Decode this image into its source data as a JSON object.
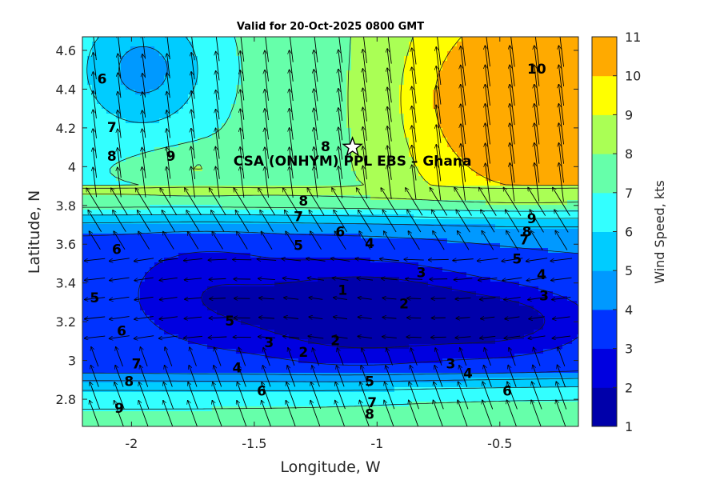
{
  "chart_data": {
    "type": "heatmap",
    "subtype": "filled-contour with wind vectors",
    "title": "Valid for 20-Oct-2025 0800 GMT",
    "xlabel": "Longitude, W",
    "ylabel": "Latitude, N",
    "xlim": [
      -2.2,
      -0.18
    ],
    "ylim": [
      2.66,
      4.67
    ],
    "xticks": [
      -2,
      -1.5,
      -1,
      -0.5
    ],
    "xtick_labels": [
      "-2",
      "-1.5",
      "-1",
      "-0.5"
    ],
    "yticks": [
      2.8,
      3,
      3.2,
      3.4,
      3.6,
      3.8,
      4,
      4.2,
      4.4,
      4.6
    ],
    "ytick_labels": [
      "2.8",
      "3",
      "3.2",
      "3.4",
      "3.6",
      "3.8",
      "4",
      "4.2",
      "4.4",
      "4.6"
    ],
    "colorbar": {
      "label": "Wind Speed, kts",
      "levels": [
        1,
        2,
        3,
        4,
        5,
        6,
        7,
        8,
        9,
        10,
        11
      ],
      "tick_labels": [
        "1",
        "2",
        "3",
        "4",
        "5",
        "6",
        "7",
        "8",
        "9",
        "10",
        "11"
      ],
      "colors": [
        "#0000aa",
        "#0000e0",
        "#0033ff",
        "#0099ff",
        "#00ccff",
        "#33ffff",
        "#66ffaa",
        "#aaff55",
        "#ffff00",
        "#ffaa00",
        "#ff5500"
      ]
    },
    "site": {
      "label": "CSA (ONHYM) PPL EBS  – Ghana",
      "lon": -1.1,
      "lat": 4.1
    },
    "contour_labels": [
      {
        "text": "6",
        "lon": -2.12,
        "lat": 4.45
      },
      {
        "text": "7",
        "lon": -2.08,
        "lat": 4.2
      },
      {
        "text": "8",
        "lon": -2.08,
        "lat": 4.05
      },
      {
        "text": "9",
        "lon": -1.84,
        "lat": 4.05
      },
      {
        "text": "8",
        "lon": -1.21,
        "lat": 4.1
      },
      {
        "text": "10",
        "lon": -0.35,
        "lat": 4.5
      },
      {
        "text": "8",
        "lon": -1.3,
        "lat": 3.82
      },
      {
        "text": "7",
        "lon": -1.32,
        "lat": 3.74
      },
      {
        "text": "6",
        "lon": -1.15,
        "lat": 3.66
      },
      {
        "text": "5",
        "lon": -1.32,
        "lat": 3.59
      },
      {
        "text": "4",
        "lon": -1.03,
        "lat": 3.6
      },
      {
        "text": "6",
        "lon": -2.06,
        "lat": 3.57
      },
      {
        "text": "9",
        "lon": -0.37,
        "lat": 3.73
      },
      {
        "text": "8",
        "lon": -0.39,
        "lat": 3.66
      },
      {
        "text": "7",
        "lon": -0.4,
        "lat": 3.62
      },
      {
        "text": "5",
        "lon": -0.43,
        "lat": 3.52
      },
      {
        "text": "4",
        "lon": -0.33,
        "lat": 3.44
      },
      {
        "text": "3",
        "lon": -0.32,
        "lat": 3.33
      },
      {
        "text": "3",
        "lon": -0.82,
        "lat": 3.45
      },
      {
        "text": "1",
        "lon": -1.14,
        "lat": 3.36
      },
      {
        "text": "2",
        "lon": -0.89,
        "lat": 3.29
      },
      {
        "text": "5",
        "lon": -2.15,
        "lat": 3.32
      },
      {
        "text": "5",
        "lon": -1.6,
        "lat": 3.2
      },
      {
        "text": "6",
        "lon": -2.04,
        "lat": 3.15
      },
      {
        "text": "3",
        "lon": -1.44,
        "lat": 3.09
      },
      {
        "text": "2",
        "lon": -1.17,
        "lat": 3.1
      },
      {
        "text": "2",
        "lon": -1.3,
        "lat": 3.04
      },
      {
        "text": "7",
        "lon": -1.98,
        "lat": 2.98
      },
      {
        "text": "4",
        "lon": -1.57,
        "lat": 2.96
      },
      {
        "text": "3",
        "lon": -0.7,
        "lat": 2.98
      },
      {
        "text": "4",
        "lon": -0.63,
        "lat": 2.93
      },
      {
        "text": "5",
        "lon": -1.03,
        "lat": 2.89
      },
      {
        "text": "8",
        "lon": -2.01,
        "lat": 2.89
      },
      {
        "text": "6",
        "lon": -1.47,
        "lat": 2.84
      },
      {
        "text": "6",
        "lon": -0.47,
        "lat": 2.84
      },
      {
        "text": "9",
        "lon": -2.05,
        "lat": 2.75
      },
      {
        "text": "7",
        "lon": -1.02,
        "lat": 2.78
      },
      {
        "text": "8",
        "lon": -1.03,
        "lat": 2.72
      }
    ]
  }
}
